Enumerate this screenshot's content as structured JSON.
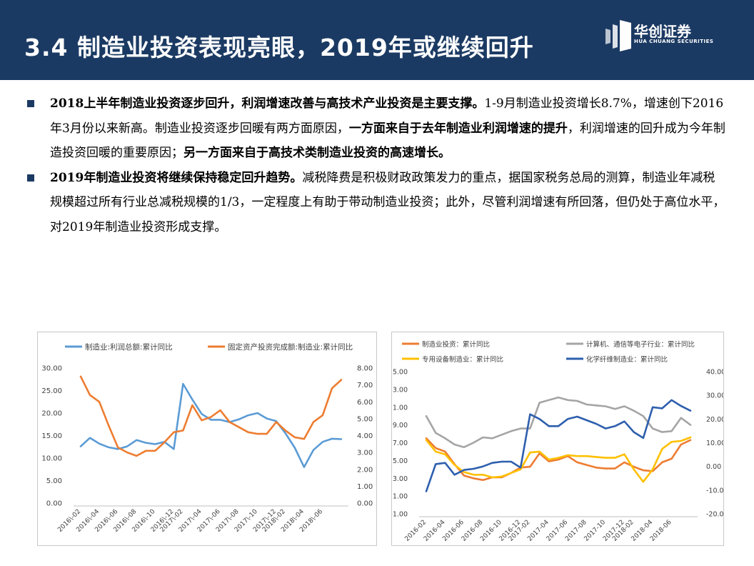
{
  "header": {
    "title": "3.4 制造业投资表现亮眼，2019年或继续回升",
    "logo_name": "华创证券",
    "logo_sub": "HUA CHUANG SECURITIES",
    "background": "#1b3a63"
  },
  "paragraphs": [
    {
      "bold_lead": "2018上半年制造业投资逐步回升，利润增速改善与高技术产业投资是主要支撑。",
      "text_1": "1-9月制造业投资增长8.7%，增速创下2016年3月份以来新高。制造业投资逐步回暖有两方面原因，",
      "bold_1": "一方面来自于去年制造业利润增速的提升",
      "text_2": "，利润增速的回升成为今年制造投资回暖的重要原因；",
      "bold_2": "另一方面来自于高技术类制造业投资的高速增长。"
    },
    {
      "bold_lead": "2019年制造业投资将继续保持稳定回升趋势。",
      "text_1": "减税降费是积极财政政策发力的重点，据国家税务总局的测算，制造业年减税规模超过所有行业总减税规模的1/3，一定程度上有助于带动制造业投资；此外，尽管利润增速有所回落，但仍处于高位水平，对2019年制造业投资形成支撑。"
    }
  ],
  "chart_data": [
    {
      "type": "line",
      "categories": [
        "2016-02",
        "2016-03",
        "2016-04",
        "2016-05",
        "2016-06",
        "2016-07",
        "2016-08",
        "2016-09",
        "2016-10",
        "2016-11",
        "2016-12",
        "2017-02",
        "2017-03",
        "2017-04",
        "2017-05",
        "2017-06",
        "2017-07",
        "2017-08",
        "2017-09",
        "2017-10",
        "2017-11",
        "2017-12",
        "2018-02",
        "2018-03",
        "2018-04",
        "2018-05",
        "2018-06",
        "2018-07",
        "2018-08"
      ],
      "tick_labels": [
        "2016\\-02",
        "2016\\-04",
        "2016\\-06",
        "2016\\-08",
        "2016\\-10",
        "2016\\-12",
        "2017\\-02",
        "2017\\-04",
        "2017\\-06",
        "2017\\-08",
        "2017\\-10",
        "2017\\-12",
        "2018\\-02",
        "2018\\-04",
        "2018\\-06"
      ],
      "y_left_ticks": [
        "30.00",
        "25.00",
        "20.00",
        "15.00",
        "10.00",
        "5.00",
        "0.00"
      ],
      "y_right_ticks": [
        "8.00",
        "7.00",
        "6.00",
        "5.00",
        "4.00",
        "3.00",
        "2.00",
        "1.00",
        "0.00"
      ],
      "ylim_left": [
        0,
        30
      ],
      "ylim_right": [
        0,
        8
      ],
      "grid": false,
      "legend_position": "top",
      "series": [
        {
          "name": "制造业:利润总额:累计同比",
          "axis": "left",
          "color": "#5b9bd5",
          "values": [
            12.6,
            14.5,
            13.2,
            12.4,
            12.0,
            12.6,
            14.0,
            13.4,
            13.1,
            13.6,
            12.0,
            26.5,
            23.0,
            19.8,
            18.5,
            18.5,
            18.0,
            18.6,
            19.5,
            20.0,
            18.8,
            18.2,
            15.5,
            12.3,
            8.0,
            11.8,
            13.6,
            14.3,
            14.2
          ]
        },
        {
          "name": "固定资产投资完成额:制造业:累计同比",
          "axis": "right",
          "color": "#ed7d31",
          "values": [
            7.5,
            6.4,
            6.0,
            4.6,
            3.3,
            3.0,
            2.8,
            3.1,
            3.1,
            3.6,
            4.2,
            4.3,
            5.8,
            4.9,
            5.1,
            5.5,
            4.8,
            4.5,
            4.2,
            4.1,
            4.1,
            4.8,
            4.3,
            3.9,
            3.8,
            4.8,
            5.2,
            6.8,
            7.3
          ]
        }
      ]
    },
    {
      "type": "line",
      "categories": [
        "2016-02",
        "2016-03",
        "2016-04",
        "2016-05",
        "2016-06",
        "2016-07",
        "2016-08",
        "2016-09",
        "2016-10",
        "2016-11",
        "2016-12",
        "2017-02",
        "2017-03",
        "2017-04",
        "2017-05",
        "2017-06",
        "2017-07",
        "2017-08",
        "2017-09",
        "2017-10",
        "2017-11",
        "2017-12",
        "2018-02",
        "2018-03",
        "2018-04",
        "2018-05",
        "2018-06",
        "2018-07",
        "2018-08"
      ],
      "tick_labels": [
        "2016-02",
        "2016-04",
        "2016-06",
        "2016-08",
        "2016-10",
        "2016-12",
        "2017-02",
        "2017-04",
        "2017-06",
        "2017-08",
        "2017-10",
        "2017-12",
        "2018-02",
        "2018-04",
        "2018-06"
      ],
      "y_left_ticks": [
        "15.00",
        "13.00",
        "11.00",
        "9.00",
        "7.00",
        "5.00",
        "3.00",
        "1.00",
        "-1.00"
      ],
      "y_right_ticks": [
        "40.00",
        "30.00",
        "20.00",
        "10.00",
        "0.00",
        "-10.00",
        "-20.00"
      ],
      "ylim_left": [
        -1,
        15
      ],
      "ylim_right": [
        -20,
        40
      ],
      "grid": false,
      "legend_position": "top",
      "series": [
        {
          "name": "制造业投资：累计同比",
          "axis": "left",
          "color": "#ed7d31",
          "values": [
            7.5,
            6.4,
            6.0,
            4.6,
            3.3,
            3.0,
            2.8,
            3.1,
            3.1,
            3.6,
            4.2,
            4.3,
            5.8,
            4.9,
            5.1,
            5.5,
            4.8,
            4.5,
            4.2,
            4.1,
            4.1,
            4.8,
            4.3,
            3.9,
            3.8,
            4.8,
            5.2,
            6.8,
            7.3
          ]
        },
        {
          "name": "计算机、通信等电子行业：累计同比",
          "axis": "left",
          "color": "#a5a5a5",
          "values": [
            10.0,
            8.1,
            7.5,
            6.8,
            6.5,
            7.0,
            7.6,
            7.5,
            7.9,
            8.3,
            8.6,
            8.6,
            11.5,
            11.8,
            12.1,
            11.8,
            11.7,
            11.3,
            11.2,
            11.1,
            10.8,
            11.1,
            10.6,
            10.0,
            8.6,
            8.2,
            8.3,
            9.8,
            9.0
          ]
        },
        {
          "name": "专用设备制造业：累计同比",
          "axis": "left",
          "color": "#ffc000",
          "values": [
            7.3,
            6.0,
            5.7,
            4.5,
            3.7,
            3.4,
            3.4,
            3.1,
            3.2,
            3.6,
            4.0,
            5.9,
            6.0,
            5.1,
            5.3,
            5.6,
            5.5,
            5.5,
            5.4,
            5.3,
            5.3,
            5.7,
            4.0,
            2.6,
            4.0,
            6.3,
            7.1,
            7.2,
            7.6
          ]
        },
        {
          "name": "化学纤维制造业：累计同比",
          "axis": "right",
          "color": "#2e5fad",
          "values": [
            -10.5,
            1.0,
            1.5,
            -3.5,
            -1.5,
            -1.0,
            0.0,
            1.5,
            2.0,
            2.0,
            -0.5,
            22.0,
            20.0,
            17.0,
            17.0,
            20.0,
            21.0,
            19.5,
            18.0,
            16.0,
            17.0,
            19.0,
            14.5,
            12.0,
            25.0,
            24.5,
            28.0,
            25.5,
            23.5
          ]
        }
      ]
    }
  ]
}
